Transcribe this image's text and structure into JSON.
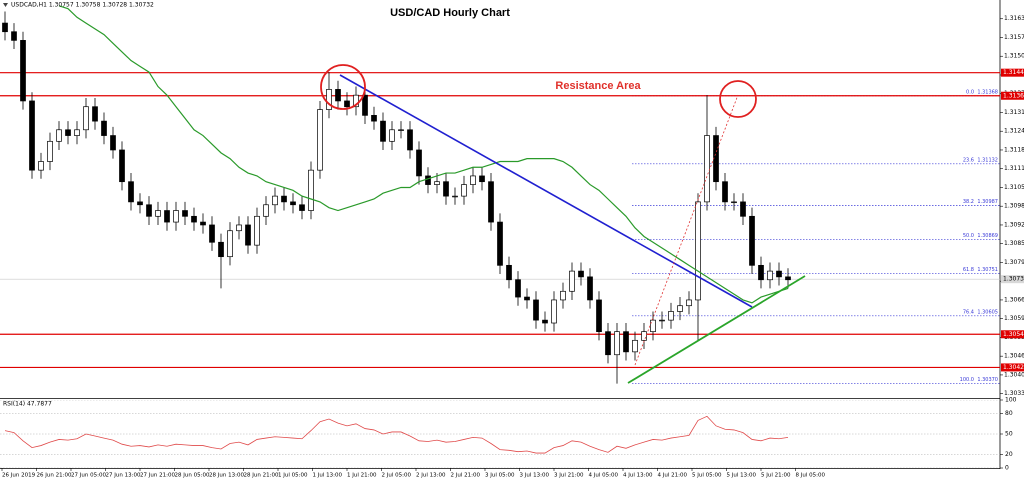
{
  "chart_data": [
    {
      "type": "candlestick",
      "title": "USD/CAD Hourly Chart",
      "header": "USDCAD,H1 1.30757 1.30758 1.30728 1.30732",
      "annotation": "Resistance Area",
      "xtick_labels": [
        "26 Jun 2019",
        "26 Jun 21:00",
        "27 Jun 05:00",
        "27 Jun 13:00",
        "27 Jun 21:00",
        "28 Jun 05:00",
        "28 Jun 13:00",
        "28 Jun 21:00",
        "1 Jul 05:00",
        "1 Jul 13:00",
        "1 Jul 21:00",
        "2 Jul 05:00",
        "2 Jul 13:00",
        "2 Jul 21:00",
        "3 Jul 05:00",
        "3 Jul 13:00",
        "3 Jul 21:00",
        "4 Jul 05:00",
        "4 Jul 13:00",
        "4 Jul 21:00",
        "5 Jul 05:00",
        "5 Jul 13:00",
        "5 Jul 21:00",
        "8 Jul 05:00"
      ],
      "open": [
        1.3162,
        1.3159,
        1.3156,
        1.3135,
        1.3111,
        1.3114,
        1.3121,
        1.3125,
        1.3123,
        1.3125,
        1.3133,
        1.3128,
        1.3123,
        1.3118,
        1.3107,
        1.31,
        1.3099,
        1.3095,
        1.3097,
        1.3093,
        1.3097,
        1.3095,
        1.3093,
        1.3092,
        1.3086,
        1.3081,
        1.309,
        1.3092,
        1.3085,
        1.3095,
        1.3099,
        1.3102,
        1.31,
        1.3099,
        1.3097,
        1.3111,
        1.3132,
        1.3139,
        1.3135,
        1.3133,
        1.3137,
        1.313,
        1.3128,
        1.3121,
        1.3125,
        1.3125,
        1.3118,
        1.3109,
        1.3106,
        1.3107,
        1.3102,
        1.3102,
        1.3106,
        1.3109,
        1.3107,
        1.3093,
        1.3078,
        1.3073,
        1.3067,
        1.3066,
        1.3059,
        1.3058,
        1.3066,
        1.3069,
        1.3076,
        1.3074,
        1.3066,
        1.3055,
        1.3047,
        1.3055,
        1.3048,
        1.3052,
        1.3055,
        1.3059,
        1.3059,
        1.3062,
        1.3064,
        1.3066,
        1.31,
        1.3123,
        1.3107,
        1.31,
        1.31,
        1.3095,
        1.3078,
        1.3073,
        1.3076,
        1.3074
      ],
      "high": [
        1.3166,
        1.3162,
        1.3159,
        1.3138,
        1.3117,
        1.3124,
        1.3128,
        1.3128,
        1.3128,
        1.3136,
        1.3136,
        1.3131,
        1.3126,
        1.3121,
        1.311,
        1.3103,
        1.3102,
        1.31,
        1.31,
        1.31,
        1.31,
        1.3098,
        1.3096,
        1.3095,
        1.3089,
        1.3093,
        1.3095,
        1.3095,
        1.3098,
        1.3102,
        1.3105,
        1.3105,
        1.3103,
        1.3102,
        1.3114,
        1.3135,
        1.3145,
        1.3142,
        1.3138,
        1.314,
        1.314,
        1.3133,
        1.3131,
        1.3128,
        1.3128,
        1.3128,
        1.3121,
        1.3112,
        1.311,
        1.311,
        1.3105,
        1.3109,
        1.3112,
        1.3112,
        1.311,
        1.3096,
        1.3081,
        1.3076,
        1.307,
        1.3069,
        1.3062,
        1.3069,
        1.3072,
        1.3079,
        1.3079,
        1.3077,
        1.3069,
        1.3058,
        1.3058,
        1.3058,
        1.3055,
        1.3058,
        1.3062,
        1.3062,
        1.3065,
        1.3067,
        1.3069,
        1.3103,
        1.3137,
        1.3126,
        1.311,
        1.3103,
        1.3103,
        1.3098,
        1.3081,
        1.3079,
        1.3079,
        1.3077
      ],
      "low": [
        1.3156,
        1.3153,
        1.3132,
        1.3108,
        1.3108,
        1.3111,
        1.3118,
        1.312,
        1.312,
        1.3122,
        1.3125,
        1.312,
        1.3115,
        1.3104,
        1.3097,
        1.3096,
        1.3092,
        1.3092,
        1.309,
        1.309,
        1.3092,
        1.309,
        1.3089,
        1.3083,
        1.307,
        1.3078,
        1.3087,
        1.3082,
        1.3082,
        1.3092,
        1.3096,
        1.3097,
        1.3096,
        1.3094,
        1.3094,
        1.3108,
        1.3129,
        1.3132,
        1.313,
        1.313,
        1.3127,
        1.3125,
        1.3118,
        1.3118,
        1.3122,
        1.3115,
        1.3106,
        1.3103,
        1.3103,
        1.3099,
        1.3099,
        1.3099,
        1.3103,
        1.3104,
        1.309,
        1.3075,
        1.307,
        1.3064,
        1.3063,
        1.3056,
        1.3055,
        1.3055,
        1.3063,
        1.3066,
        1.3071,
        1.3063,
        1.3052,
        1.3044,
        1.3037,
        1.3045,
        1.3045,
        1.3049,
        1.3052,
        1.3056,
        1.3056,
        1.3059,
        1.3061,
        1.3052,
        1.3097,
        1.3104,
        1.3097,
        1.3097,
        1.3092,
        1.3075,
        1.307,
        1.307,
        1.3071,
        1.307
      ],
      "close": [
        1.3159,
        1.3156,
        1.3135,
        1.3111,
        1.3114,
        1.3121,
        1.3125,
        1.3123,
        1.3125,
        1.3133,
        1.3128,
        1.3123,
        1.3118,
        1.3107,
        1.31,
        1.3099,
        1.3095,
        1.3097,
        1.3093,
        1.3097,
        1.3095,
        1.3093,
        1.3092,
        1.3086,
        1.3081,
        1.309,
        1.3092,
        1.3085,
        1.3095,
        1.3099,
        1.3102,
        1.31,
        1.3099,
        1.3097,
        1.3111,
        1.3132,
        1.3139,
        1.3135,
        1.3133,
        1.3137,
        1.313,
        1.3128,
        1.3121,
        1.3125,
        1.3125,
        1.3118,
        1.3109,
        1.3106,
        1.3107,
        1.3102,
        1.3102,
        1.3106,
        1.3109,
        1.3107,
        1.3093,
        1.3078,
        1.3073,
        1.3067,
        1.3066,
        1.3059,
        1.3058,
        1.3066,
        1.3069,
        1.3076,
        1.3074,
        1.3066,
        1.3055,
        1.3047,
        1.3055,
        1.3048,
        1.3052,
        1.3055,
        1.3059,
        1.3059,
        1.3062,
        1.3064,
        1.3066,
        1.31,
        1.3123,
        1.3107,
        1.31,
        1.31,
        1.3095,
        1.3078,
        1.3073,
        1.3076,
        1.3074,
        1.3073
      ],
      "ma": {
        "color": "#2a9a2a",
        "values": [
          null,
          null,
          null,
          null,
          null,
          null,
          1.3168,
          1.3167,
          1.3164,
          1.3162,
          1.316,
          1.3158,
          1.3155,
          1.3152,
          1.3149,
          1.3147,
          1.3145,
          1.314,
          1.3137,
          1.3133,
          1.3129,
          1.3125,
          1.3123,
          1.312,
          1.3117,
          1.3115,
          1.3112,
          1.311,
          1.3109,
          1.3107,
          1.3106,
          1.3105,
          1.3104,
          1.3102,
          1.3101,
          1.31,
          1.3098,
          1.3097,
          1.3098,
          1.3099,
          1.31,
          1.3101,
          1.3103,
          1.3104,
          1.3105,
          1.3105,
          1.3107,
          1.3108,
          1.3109,
          1.311,
          1.311,
          1.3111,
          1.3112,
          1.3112,
          1.3113,
          1.3114,
          1.3114,
          1.3114,
          1.3115,
          1.3115,
          1.3115,
          1.3115,
          1.3114,
          1.3112,
          1.3109,
          1.3106,
          1.3104,
          1.3101,
          1.3098,
          1.3095,
          1.3091,
          1.3088,
          1.3086,
          1.3084,
          1.3082,
          1.308,
          1.3078,
          1.3076,
          1.3074,
          1.3072,
          1.307,
          1.3068,
          1.3066,
          1.3065,
          1.3067,
          1.3068,
          1.3069,
          1.307
        ]
      },
      "ylim": [
        1.3032,
        1.317
      ],
      "yticks": [
        1.31635,
        {
          "value": 1.3157,
          "label": "1.31570"
        },
        1.31505,
        {
          "value": 1.3144,
          "label": "1.31440"
        },
        1.31375,
        {
          "value": 1.3131,
          "label": "1.31310"
        },
        1.31245,
        {
          "value": 1.3118,
          "label": "1.31180"
        },
        1.31115,
        {
          "value": 1.3105,
          "label": "1.31050"
        },
        1.30985,
        {
          "value": 1.3092,
          "label": "1.30920"
        },
        1.30855,
        {
          "value": 1.3079,
          "label": "1.30790"
        },
        1.30725,
        {
          "value": 1.3066,
          "label": "1.30660"
        },
        1.30595,
        {
          "value": 1.3053,
          "label": "1.30530"
        },
        1.30465,
        {
          "value": 1.304,
          "label": "1.30400"
        },
        1.30335
      ],
      "levels": [
        1.31448,
        1.31368,
        1.30541,
        1.30426
      ],
      "level_color": "#e00000",
      "fib": [
        {
          "level": "0.0",
          "price": 1.31368
        },
        {
          "level": "23.6",
          "price": 1.31132
        },
        {
          "level": "38.2",
          "price": 1.30987
        },
        {
          "level": "50.0",
          "price": 1.30869
        },
        {
          "level": "61.8",
          "price": 1.30751
        },
        {
          "level": "76.4",
          "price": 1.30605
        },
        {
          "level": "100.0",
          "price": {
            "value": 1.3037,
            "label": "1.30370"
          }
        }
      ],
      "fib_color": "#3a3ad8",
      "current_price": 1.30732
    },
    {
      "type": "line",
      "title": "RSI(14) 47.7877",
      "color": "#e04a4a",
      "values": [
        55,
        52,
        40,
        30,
        33,
        38,
        42,
        41,
        43,
        50,
        47,
        44,
        41,
        35,
        32,
        33,
        31,
        34,
        32,
        35,
        34,
        33,
        33,
        30,
        28,
        36,
        38,
        34,
        42,
        44,
        46,
        45,
        44,
        43,
        55,
        68,
        72,
        66,
        62,
        65,
        58,
        56,
        50,
        53,
        53,
        47,
        40,
        39,
        41,
        38,
        39,
        42,
        45,
        44,
        36,
        27,
        26,
        24,
        25,
        22,
        22,
        30,
        33,
        40,
        38,
        32,
        27,
        23,
        32,
        29,
        34,
        38,
        42,
        41,
        44,
        46,
        48,
        70,
        76,
        62,
        57,
        56,
        52,
        42,
        40,
        44,
        43,
        45
      ],
      "ylim": [
        0,
        100
      ],
      "yticks": [
        100,
        80,
        50,
        20,
        0
      ]
    }
  ]
}
